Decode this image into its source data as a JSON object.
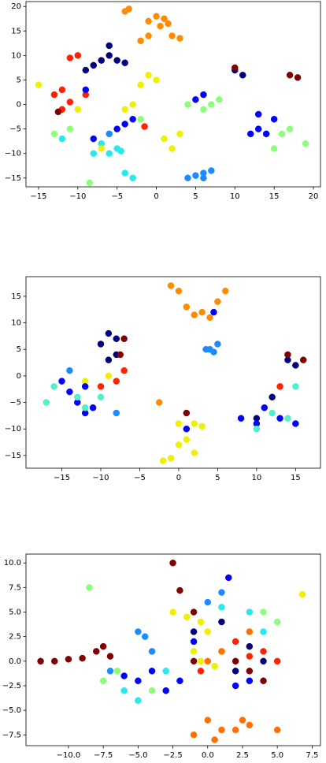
{
  "chart_data": [
    {
      "type": "scatter",
      "xlim": [
        -16.6,
        20.9
      ],
      "ylim": [
        -16.8,
        21
      ],
      "xticks": [
        {
          "value": -15,
          "label": "−15"
        },
        {
          "value": -10,
          "label": "−10"
        },
        {
          "value": -5,
          "label": "−5"
        },
        0,
        5,
        10,
        15,
        20
      ],
      "yticks": [
        {
          "value": -15,
          "label": "−15"
        },
        {
          "value": -10,
          "label": "−10"
        },
        {
          "value": -5,
          "label": "−5"
        },
        0,
        5,
        10,
        15,
        20
      ],
      "series": [
        {
          "color": "#ff8c00",
          "x": [
            -3.5,
            -4,
            -1,
            0,
            1,
            0.5,
            -1,
            2,
            3,
            -2,
            1.5
          ],
          "y": [
            19.5,
            19,
            17,
            18,
            17.5,
            16,
            14,
            14,
            13.5,
            13,
            16.5
          ]
        },
        {
          "color": "#00007f",
          "x": [
            -6,
            -7,
            -8,
            -5,
            -4,
            -9,
            -6,
            10,
            11
          ],
          "y": [
            10,
            9,
            8,
            9,
            8.5,
            7,
            12,
            7,
            6
          ]
        },
        {
          "color": "#ff2200",
          "x": [
            -10,
            -11,
            -12,
            -13,
            -11,
            -12,
            -9,
            -1.5
          ],
          "y": [
            10,
            9.5,
            3,
            2,
            0.5,
            -1,
            2,
            -4.5
          ]
        },
        {
          "color": "#7f0000",
          "x": [
            18,
            10,
            -12.5,
            17
          ],
          "y": [
            5.5,
            7.5,
            -1.5,
            6
          ]
        },
        {
          "color": "#0000ff",
          "x": [
            -9,
            -4,
            -5,
            -3,
            13,
            14,
            12,
            15,
            13,
            -8,
            5,
            6
          ],
          "y": [
            3,
            -4,
            -5,
            -3,
            -5,
            -6,
            -6,
            -3,
            -2,
            -7,
            1,
            2
          ]
        },
        {
          "color": "#1a8cff",
          "x": [
            4,
            5,
            6,
            7,
            6,
            -6
          ],
          "y": [
            -15,
            -14.5,
            -14,
            -13.5,
            -15,
            -6
          ]
        },
        {
          "color": "#28e8f0",
          "x": [
            -7,
            -6,
            -5,
            -8,
            -12,
            -4,
            -3,
            -4.5
          ],
          "y": [
            -8,
            -10,
            -9,
            -10,
            -7,
            -14,
            -15,
            -9.5
          ]
        },
        {
          "color": "#8cff7a",
          "x": [
            -13,
            -11,
            4,
            6,
            7,
            8,
            16,
            17,
            19,
            15,
            -8.5,
            -2
          ],
          "y": [
            -6,
            -5,
            0,
            -1,
            0,
            1,
            -6,
            -5,
            -8,
            -9,
            -16,
            -3
          ]
        },
        {
          "color": "#f0f000",
          "x": [
            -15,
            -1,
            0,
            -2,
            1,
            2,
            3,
            -3,
            -4,
            -10,
            -7
          ],
          "y": [
            4,
            6,
            5,
            4,
            -7,
            -9,
            -6,
            0,
            -1,
            -1,
            -9
          ]
        }
      ]
    },
    {
      "type": "scatter",
      "xlim": [
        -19.6,
        18.2
      ],
      "ylim": [
        -17.4,
        18.7
      ],
      "xticks": [
        {
          "value": -15,
          "label": "−15"
        },
        {
          "value": -10,
          "label": "−10"
        },
        {
          "value": -5,
          "label": "−5"
        },
        0,
        5,
        10,
        15
      ],
      "yticks": [
        {
          "value": -15,
          "label": "−15"
        },
        {
          "value": -10,
          "label": "−10"
        },
        {
          "value": -5,
          "label": "−5"
        },
        0,
        5,
        10,
        15
      ],
      "series": [
        {
          "color": "#ff8c00",
          "x": [
            -1,
            0,
            1,
            3,
            5,
            6,
            4,
            2,
            -2.5
          ],
          "y": [
            17,
            16,
            13,
            12,
            14,
            16,
            11,
            11.5,
            -5
          ]
        },
        {
          "color": "#f0f000",
          "x": [
            -2,
            -1,
            0,
            1,
            2,
            0,
            1,
            2,
            3,
            -12,
            -9
          ],
          "y": [
            -16,
            -15.5,
            -13,
            -12,
            -14.5,
            -9,
            -10,
            -9,
            -9.5,
            -1,
            0
          ]
        },
        {
          "color": "#1a8cff",
          "x": [
            4,
            5,
            4.5,
            3.5,
            -8,
            -14
          ],
          "y": [
            5,
            6,
            4.5,
            5,
            -7,
            1
          ]
        },
        {
          "color": "#00007f",
          "x": [
            -9,
            -8,
            -10,
            -9,
            -8,
            10,
            12,
            14,
            15
          ],
          "y": [
            8,
            7,
            6,
            3,
            4,
            -8,
            -4,
            3,
            2
          ]
        },
        {
          "color": "#7f0000",
          "x": [
            -7,
            -7.5,
            14,
            16,
            1
          ],
          "y": [
            7,
            4,
            4,
            3,
            -7
          ]
        },
        {
          "color": "#ff2200",
          "x": [
            -7,
            -8,
            13,
            -10
          ],
          "y": [
            1,
            -1,
            -2,
            -2
          ]
        },
        {
          "color": "#0000ff",
          "x": [
            -15,
            -14,
            -12,
            -13,
            -11,
            -12,
            8,
            10,
            11,
            13,
            4.5,
            1,
            15
          ],
          "y": [
            -1,
            -3,
            -2,
            -5,
            -6,
            -7,
            -8,
            -9,
            -6,
            -8,
            12,
            -10,
            -9
          ]
        },
        {
          "color": "#50f0c8",
          "x": [
            -17,
            -16,
            -13,
            -10,
            -12,
            10,
            12,
            14,
            15
          ],
          "y": [
            -5,
            -2,
            -4,
            -4,
            -6,
            -10,
            -7,
            -8,
            -2
          ]
        }
      ]
    },
    {
      "type": "scatter",
      "xlim": [
        -13.05,
        8.1
      ],
      "ylim": [
        -8.6,
        10.9
      ],
      "xticks": [
        {
          "value": -10,
          "label": "−10.0"
        },
        {
          "value": -7.5,
          "label": "−7.5"
        },
        {
          "value": -5,
          "label": "−5.0"
        },
        {
          "value": -2.5,
          "label": "−2.5"
        },
        {
          "value": 0,
          "label": "0.0"
        },
        2.5,
        {
          "value": 5,
          "label": "5.0"
        },
        7.5
      ],
      "yticks": [
        {
          "value": -7.5,
          "label": "−7.5"
        },
        {
          "value": -5,
          "label": "−5.0"
        },
        {
          "value": -2.5,
          "label": "−2.5"
        },
        {
          "value": 0,
          "label": "0.0"
        },
        2.5,
        {
          "value": 5,
          "label": "5.0"
        },
        7.5,
        {
          "value": 10,
          "label": "10.0"
        }
      ],
      "series": [
        {
          "color": "#7f0000",
          "x": [
            -12,
            -11,
            -10,
            -9,
            -8,
            -7.5,
            -7,
            2,
            3,
            4,
            -2.5,
            -2,
            -1,
            -1
          ],
          "y": [
            0,
            0,
            0.2,
            0.3,
            1,
            1.5,
            0.5,
            0,
            -1,
            -2,
            10,
            7.2,
            0,
            5
          ]
        },
        {
          "color": "#ff7000",
          "x": [
            0,
            1,
            2,
            3,
            -1,
            0.5,
            2.5,
            5,
            1,
            0,
            3
          ],
          "y": [
            -6,
            -7,
            -7,
            -6.5,
            -7.5,
            -8,
            -6,
            -7,
            1,
            0,
            3
          ]
        },
        {
          "color": "#ff2200",
          "x": [
            2,
            4,
            5,
            3,
            -0.5
          ],
          "y": [
            2,
            1,
            0,
            0.5,
            -1
          ]
        },
        {
          "color": "#0000ff",
          "x": [
            -5,
            -4,
            -3,
            -2,
            -6,
            1.5,
            2,
            -1,
            3
          ],
          "y": [
            -2,
            -1,
            -3,
            -2,
            -1.5,
            8.5,
            -2.5,
            2,
            -2
          ]
        },
        {
          "color": "#00007f",
          "x": [
            2,
            3,
            4,
            -1,
            1
          ],
          "y": [
            -1,
            1.5,
            0,
            3,
            4
          ]
        },
        {
          "color": "#1a8cff",
          "x": [
            -5,
            -4.5,
            -4,
            1,
            0,
            -7
          ],
          "y": [
            3,
            2.5,
            1,
            7,
            6,
            -1
          ]
        },
        {
          "color": "#28e8f0",
          "x": [
            1,
            3,
            -3,
            -6,
            -5,
            4
          ],
          "y": [
            5.5,
            5,
            -1,
            -3,
            -4,
            3
          ]
        },
        {
          "color": "#8cff7a",
          "x": [
            -8.5,
            -7.5,
            -6.5,
            -4,
            5,
            4
          ],
          "y": [
            7.5,
            -2,
            -1,
            -3,
            4,
            5
          ]
        },
        {
          "color": "#f0f000",
          "x": [
            6.8,
            -2.5,
            -1.5,
            -0.5,
            0,
            -0.5,
            0.5,
            -1
          ],
          "y": [
            6.8,
            5,
            4.5,
            4,
            3,
            0,
            -0.5,
            1
          ]
        }
      ]
    }
  ]
}
